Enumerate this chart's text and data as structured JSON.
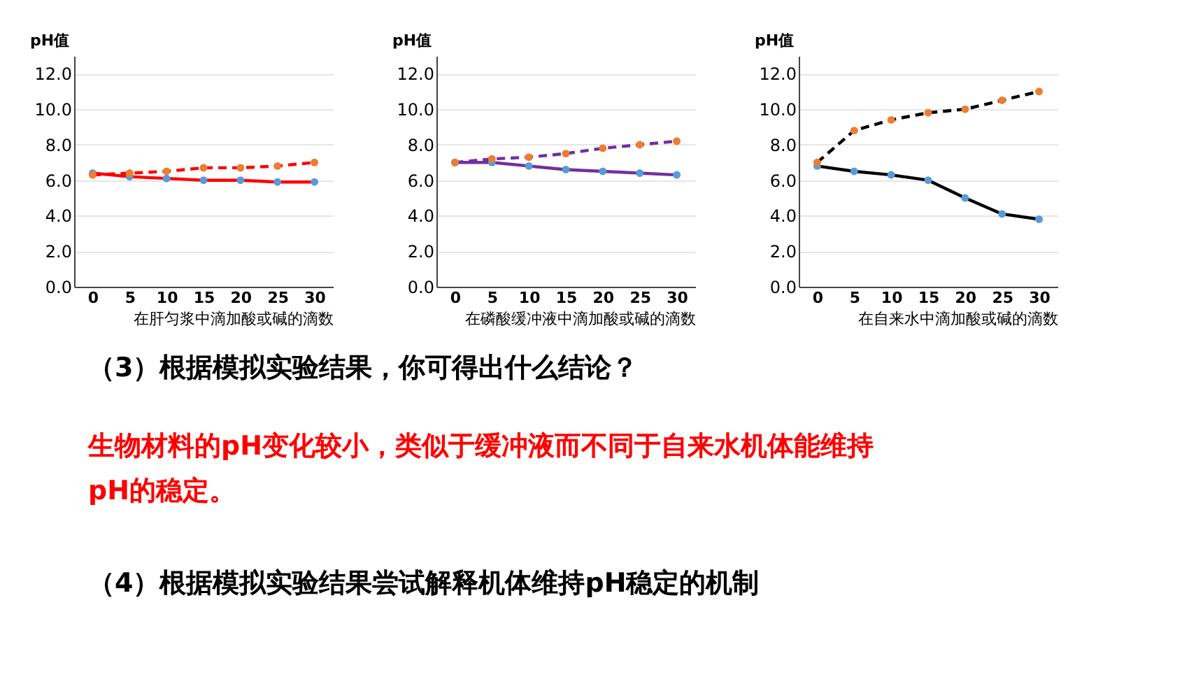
{
  "chart_data": [
    {
      "type": "line",
      "xlabel": "在肝匀浆中滴加酸或碱的滴数",
      "ylabel": "pH值",
      "categories": [
        "0",
        "5",
        "10",
        "15",
        "20",
        "25",
        "30"
      ],
      "ylim": [
        0,
        13
      ],
      "yticks": [
        {
          "value": 0,
          "label": "0.0"
        },
        {
          "value": 2,
          "label": "2.0"
        },
        {
          "value": 4,
          "label": "4.0"
        },
        {
          "value": 6,
          "label": "6.0"
        },
        {
          "value": 8,
          "label": "8.0"
        },
        {
          "value": 10,
          "label": "10.0"
        },
        {
          "value": 12,
          "label": "12.0"
        }
      ],
      "grid": "y",
      "marker": "circle",
      "series": [
        {
          "color": "#ff0000",
          "line_style": "solid",
          "colors": [
            "#5b9bd5",
            "#5b9bd5",
            "#5b9bd5",
            "#5b9bd5",
            "#5b9bd5",
            "#5b9bd5",
            "#5b9bd5"
          ],
          "values": [
            6.4,
            6.2,
            6.1,
            6.0,
            6.0,
            5.9,
            5.9
          ]
        },
        {
          "color": "#ff0000",
          "line_style": "dashed",
          "colors": [
            "#ed7d31",
            "#ed7d31",
            "#ed7d31",
            "#ed7d31",
            "#ed7d31",
            "#ed7d31",
            "#ed7d31"
          ],
          "values": [
            6.3,
            6.4,
            6.5,
            6.7,
            6.7,
            6.8,
            7.0
          ]
        }
      ]
    },
    {
      "type": "line",
      "xlabel": "在磷酸缓冲液中滴加酸或碱的滴数",
      "ylabel": "pH值",
      "categories": [
        "0",
        "5",
        "10",
        "15",
        "20",
        "25",
        "30"
      ],
      "ylim": [
        0,
        13
      ],
      "yticks": [
        {
          "value": 0,
          "label": "0.0"
        },
        {
          "value": 2,
          "label": "2.0"
        },
        {
          "value": 4,
          "label": "4.0"
        },
        {
          "value": 6,
          "label": "6.0"
        },
        {
          "value": 8,
          "label": "8.0"
        },
        {
          "value": 10,
          "label": "10.0"
        },
        {
          "value": 12,
          "label": "12.0"
        }
      ],
      "grid": "y",
      "marker": "circle",
      "series": [
        {
          "color": "#7030a0",
          "line_style": "solid",
          "colors": [
            "#5b9bd5",
            "#5b9bd5",
            "#5b9bd5",
            "#5b9bd5",
            "#5b9bd5",
            "#5b9bd5",
            "#5b9bd5"
          ],
          "values": [
            7.0,
            7.0,
            6.8,
            6.6,
            6.5,
            6.4,
            6.3
          ]
        },
        {
          "color": "#7030a0",
          "line_style": "dashed",
          "colors": [
            "#ed7d31",
            "#ed7d31",
            "#ed7d31",
            "#ed7d31",
            "#ed7d31",
            "#ed7d31",
            "#ed7d31"
          ],
          "values": [
            7.0,
            7.2,
            7.3,
            7.5,
            7.8,
            8.0,
            8.2
          ]
        }
      ]
    },
    {
      "type": "line",
      "xlabel": "在自来水中滴加酸或碱的滴数",
      "ylabel": "pH值",
      "categories": [
        "0",
        "5",
        "10",
        "15",
        "20",
        "25",
        "30"
      ],
      "ylim": [
        0,
        13
      ],
      "yticks": [
        {
          "value": 0,
          "label": "0.0"
        },
        {
          "value": 2,
          "label": "2.0"
        },
        {
          "value": 4,
          "label": "4.0"
        },
        {
          "value": 6,
          "label": "6.0"
        },
        {
          "value": 8,
          "label": "8.0"
        },
        {
          "value": 10,
          "label": "10.0"
        },
        {
          "value": 12,
          "label": "12.0"
        }
      ],
      "grid": "y",
      "marker": "circle",
      "series": [
        {
          "color": "#000000",
          "line_style": "solid",
          "colors": [
            "#5b9bd5",
            "#5b9bd5",
            "#5b9bd5",
            "#5b9bd5",
            "#5b9bd5",
            "#5b9bd5",
            "#5b9bd5"
          ],
          "values": [
            6.8,
            6.5,
            6.3,
            6.0,
            5.0,
            4.1,
            3.8
          ]
        },
        {
          "color": "#000000",
          "line_style": "dashed",
          "colors": [
            "#ed7d31",
            "#ed7d31",
            "#ed7d31",
            "#ed7d31",
            "#ed7d31",
            "#ed7d31",
            "#ed7d31"
          ],
          "values": [
            7.0,
            8.8,
            9.4,
            9.8,
            10.0,
            10.5,
            11.0
          ]
        }
      ]
    },
    {
      "type": "other",
      "annotations": [
        "（3）根据模拟实验结果，你可得出什么结论？",
        "生物材料的pH变化较小，类似于缓冲液而不同于自来水机体能维持\npH的稳定。",
        "（4）根据模拟实验结果尝试解释机体维持pH稳定的机制"
      ],
      "colors": [
        "#000000",
        "#ff0000",
        "#000000"
      ]
    }
  ]
}
